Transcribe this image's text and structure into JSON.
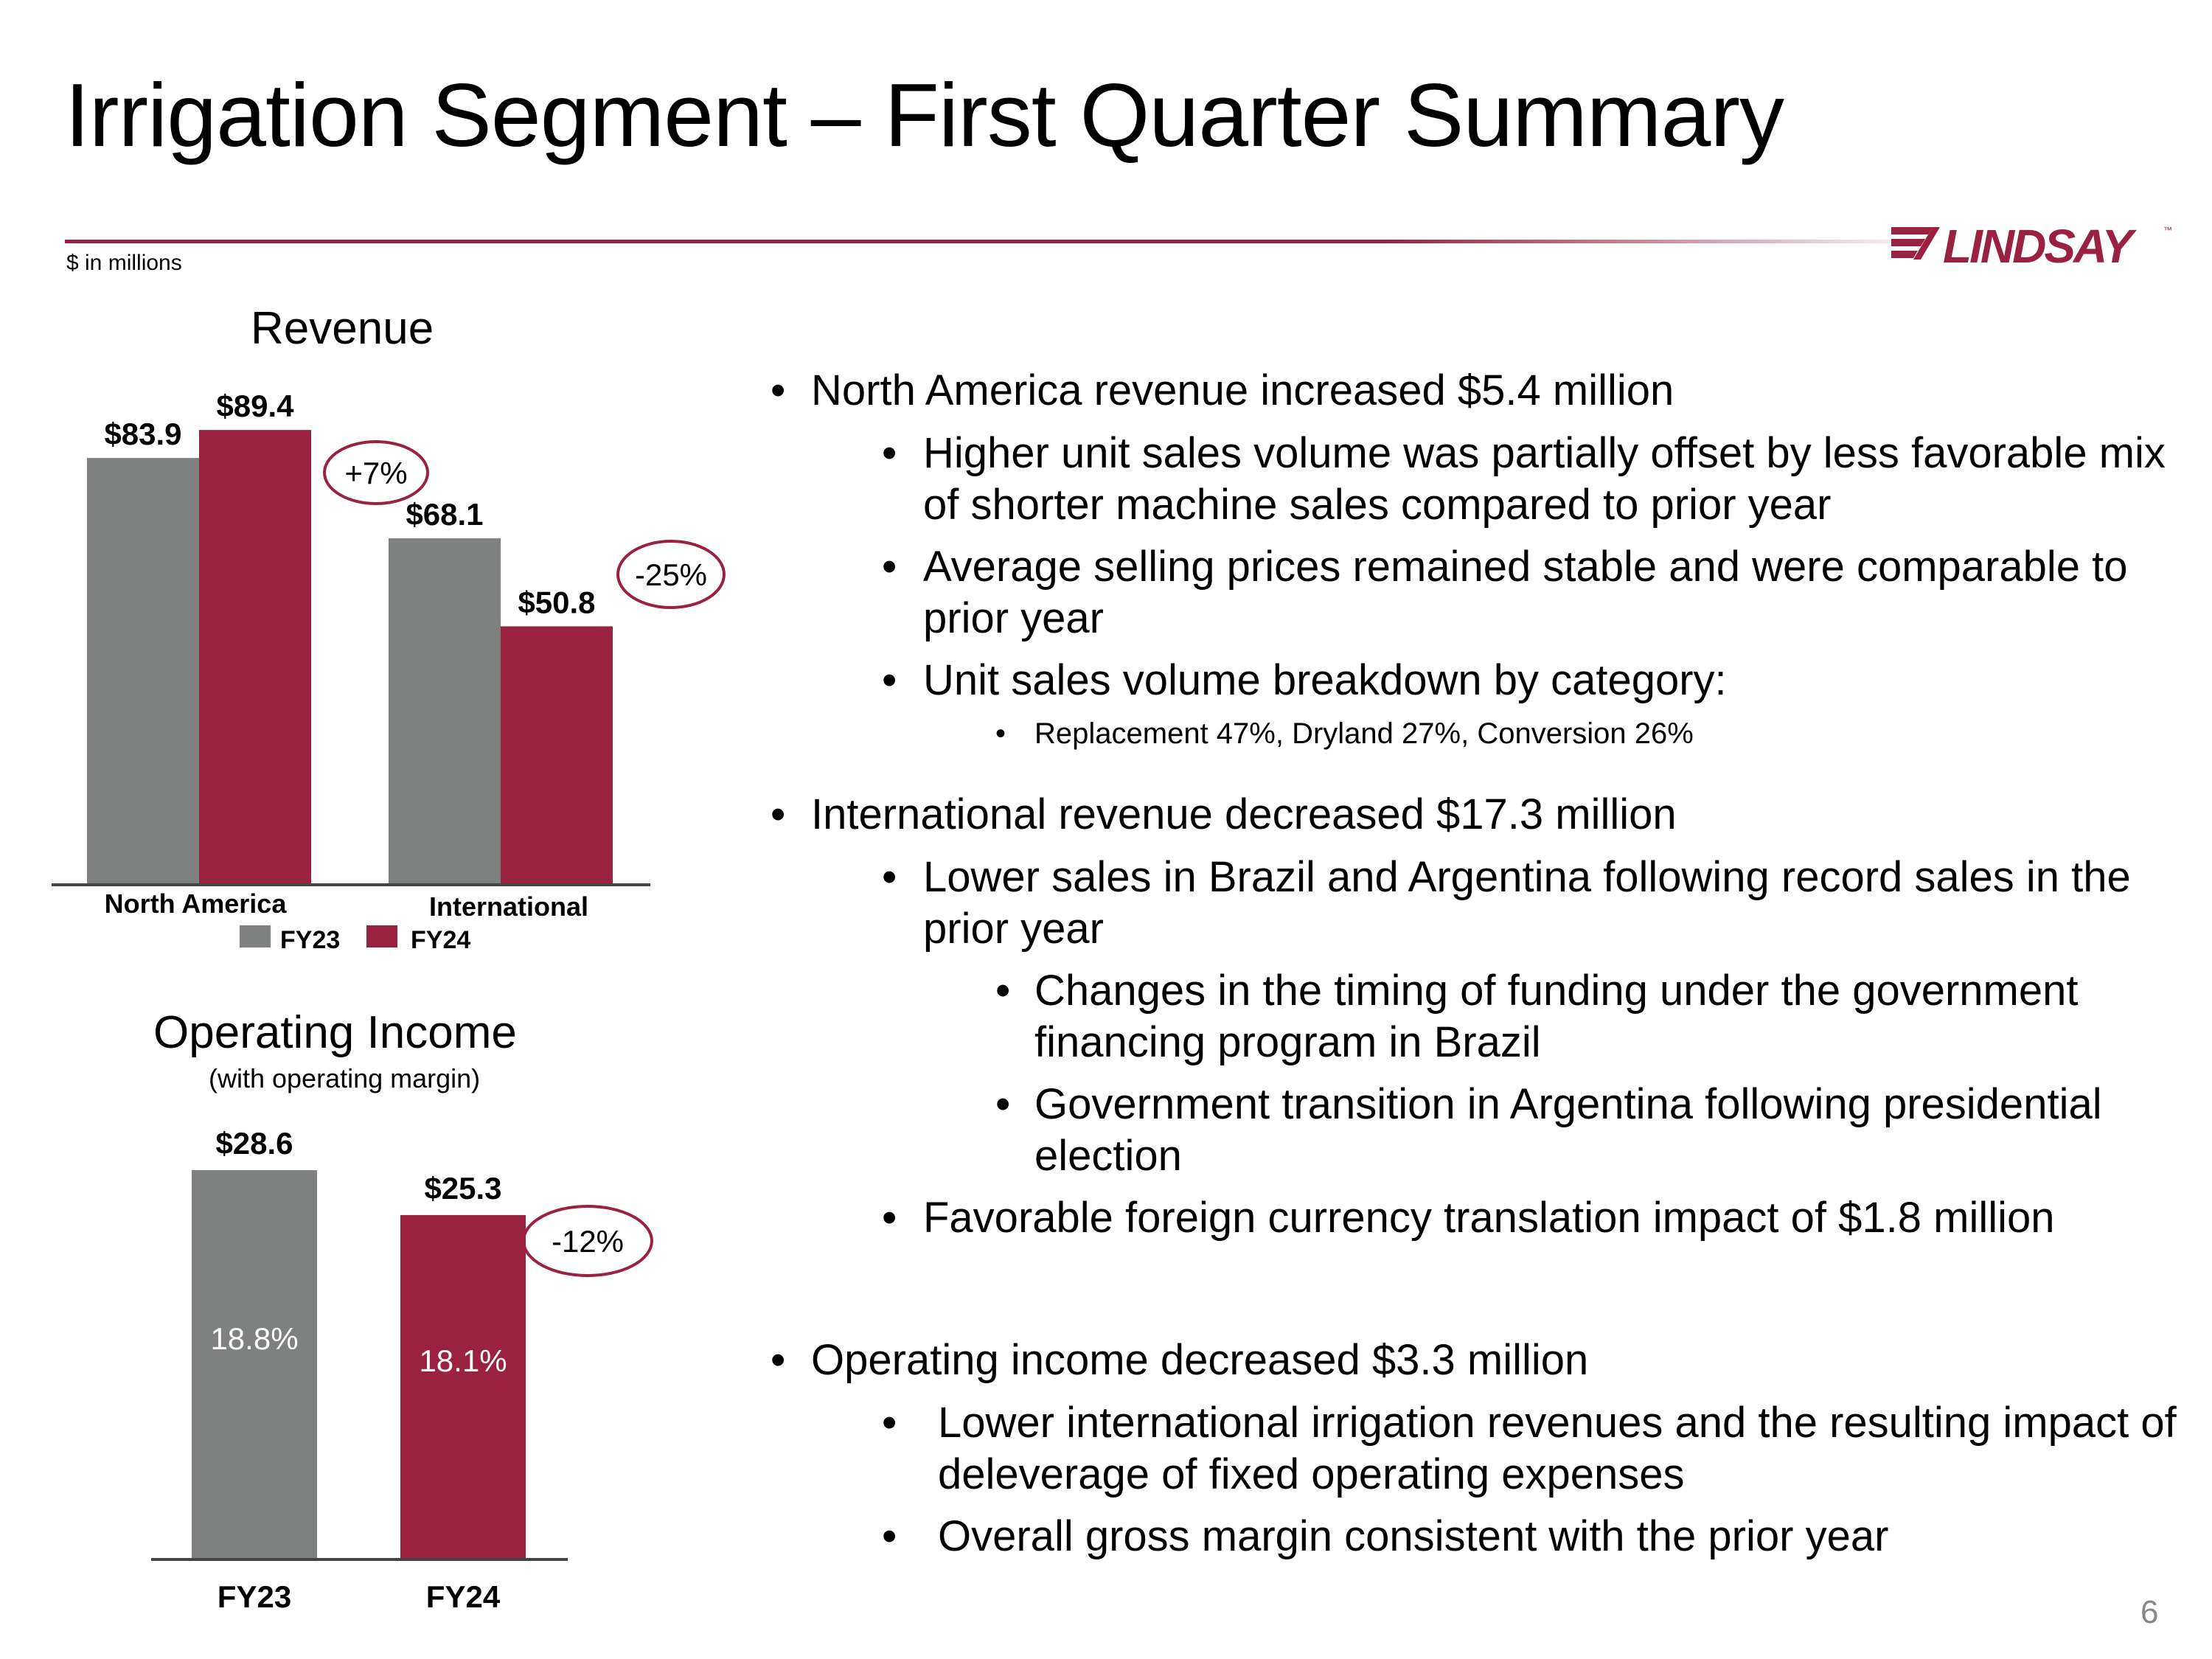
{
  "title": "Irrigation Segment – First Quarter Summary",
  "units_note": "$ in millions",
  "logo_text": "LINDSAY",
  "logo_tm": "™",
  "colors": {
    "fy23": "#7f8181",
    "fy24": "#9a2240",
    "accent": "#9a2240"
  },
  "page_number": "6",
  "chart_data": [
    {
      "type": "bar",
      "title": "Revenue",
      "categories": [
        "North America",
        "International"
      ],
      "series": [
        {
          "name": "FY23",
          "values": [
            83.9,
            68.1
          ],
          "labels": [
            "$83.9",
            "$68.1"
          ]
        },
        {
          "name": "FY24",
          "values": [
            89.4,
            50.8
          ],
          "labels": [
            "$89.4",
            "$50.8"
          ]
        }
      ],
      "changes": [
        "+7%",
        "-25%"
      ],
      "ylim": [
        0,
        100
      ],
      "legend": [
        "FY23",
        "FY24"
      ],
      "legend_position": "bottom"
    },
    {
      "type": "bar",
      "title": "Operating Income",
      "subtitle": "(with operating margin)",
      "categories": [
        "FY23",
        "FY24"
      ],
      "values": [
        28.6,
        25.3
      ],
      "labels": [
        "$28.6",
        "$25.3"
      ],
      "margins": [
        "18.8%",
        "18.1%"
      ],
      "change": "-12%",
      "ylim": [
        0,
        35
      ]
    }
  ],
  "bullets": [
    {
      "level": 1,
      "lines": [
        "North America revenue increased $5.4 million"
      ]
    },
    {
      "level": 2,
      "lines": [
        "Higher unit sales volume was partially offset by less favorable mix",
        "of shorter machine sales compared to prior year"
      ]
    },
    {
      "level": 2,
      "lines": [
        "Average selling prices remained stable and were comparable to",
        "prior year"
      ]
    },
    {
      "level": 2,
      "lines": [
        "Unit sales volume breakdown by category:"
      ]
    },
    {
      "level": 3,
      "lines": [
        "Replacement 47%, Dryland 27%, Conversion 26%"
      ]
    },
    {
      "level": 1,
      "lines": [
        "International revenue decreased $17.3 million"
      ]
    },
    {
      "level": 2,
      "lines": [
        "Lower sales in Brazil and Argentina following record sales in the",
        "prior year"
      ]
    },
    {
      "level": 3,
      "lines": [
        "Changes in the timing of funding under the government",
        "financing program in Brazil"
      ]
    },
    {
      "level": 3,
      "lines": [
        "Government transition in Argentina following presidential",
        "election"
      ]
    },
    {
      "level": 2,
      "lines": [
        "Favorable foreign currency translation impact of $1.8 million"
      ]
    },
    {
      "level": 1,
      "lines": [
        "Operating income decreased $3.3 million"
      ]
    },
    {
      "level": 2,
      "lines": [
        "Lower international irrigation revenues and the resulting impact of",
        "deleverage of fixed operating expenses"
      ]
    },
    {
      "level": 2,
      "lines": [
        "Overall gross margin consistent with the prior year"
      ]
    }
  ]
}
